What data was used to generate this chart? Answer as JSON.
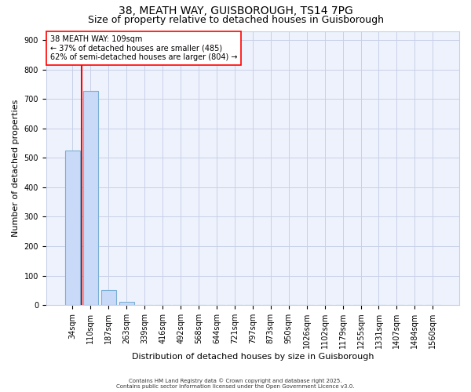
{
  "title1": "38, MEATH WAY, GUISBOROUGH, TS14 7PG",
  "title2": "Size of property relative to detached houses in Guisborough",
  "xlabel": "Distribution of detached houses by size in Guisborough",
  "ylabel": "Number of detached properties",
  "categories": [
    "34sqm",
    "110sqm",
    "187sqm",
    "263sqm",
    "339sqm",
    "416sqm",
    "492sqm",
    "568sqm",
    "644sqm",
    "721sqm",
    "797sqm",
    "873sqm",
    "950sqm",
    "1026sqm",
    "1102sqm",
    "1179sqm",
    "1255sqm",
    "1331sqm",
    "1407sqm",
    "1484sqm",
    "1560sqm"
  ],
  "values": [
    525,
    728,
    50,
    10,
    0,
    0,
    0,
    0,
    0,
    0,
    0,
    0,
    0,
    0,
    0,
    0,
    0,
    0,
    0,
    0,
    0
  ],
  "bar_color": "#c9daf8",
  "bar_edge_color": "#7bafd4",
  "vline_color": "red",
  "annotation_text": "38 MEATH WAY: 109sqm\n← 37% of detached houses are smaller (485)\n62% of semi-detached houses are larger (804) →",
  "annotation_box_color": "white",
  "annotation_box_edge_color": "red",
  "ylim": [
    0,
    930
  ],
  "yticks": [
    0,
    100,
    200,
    300,
    400,
    500,
    600,
    700,
    800,
    900
  ],
  "footer1": "Contains HM Land Registry data © Crown copyright and database right 2025.",
  "footer2": "Contains public sector information licensed under the Open Government Licence v3.0.",
  "bg_color": "#eef2fc",
  "grid_color": "#c8d0e8",
  "title1_fontsize": 10,
  "title2_fontsize": 9,
  "xlabel_fontsize": 8,
  "ylabel_fontsize": 8,
  "tick_fontsize": 7,
  "annotation_fontsize": 7,
  "footer_fontsize": 5
}
